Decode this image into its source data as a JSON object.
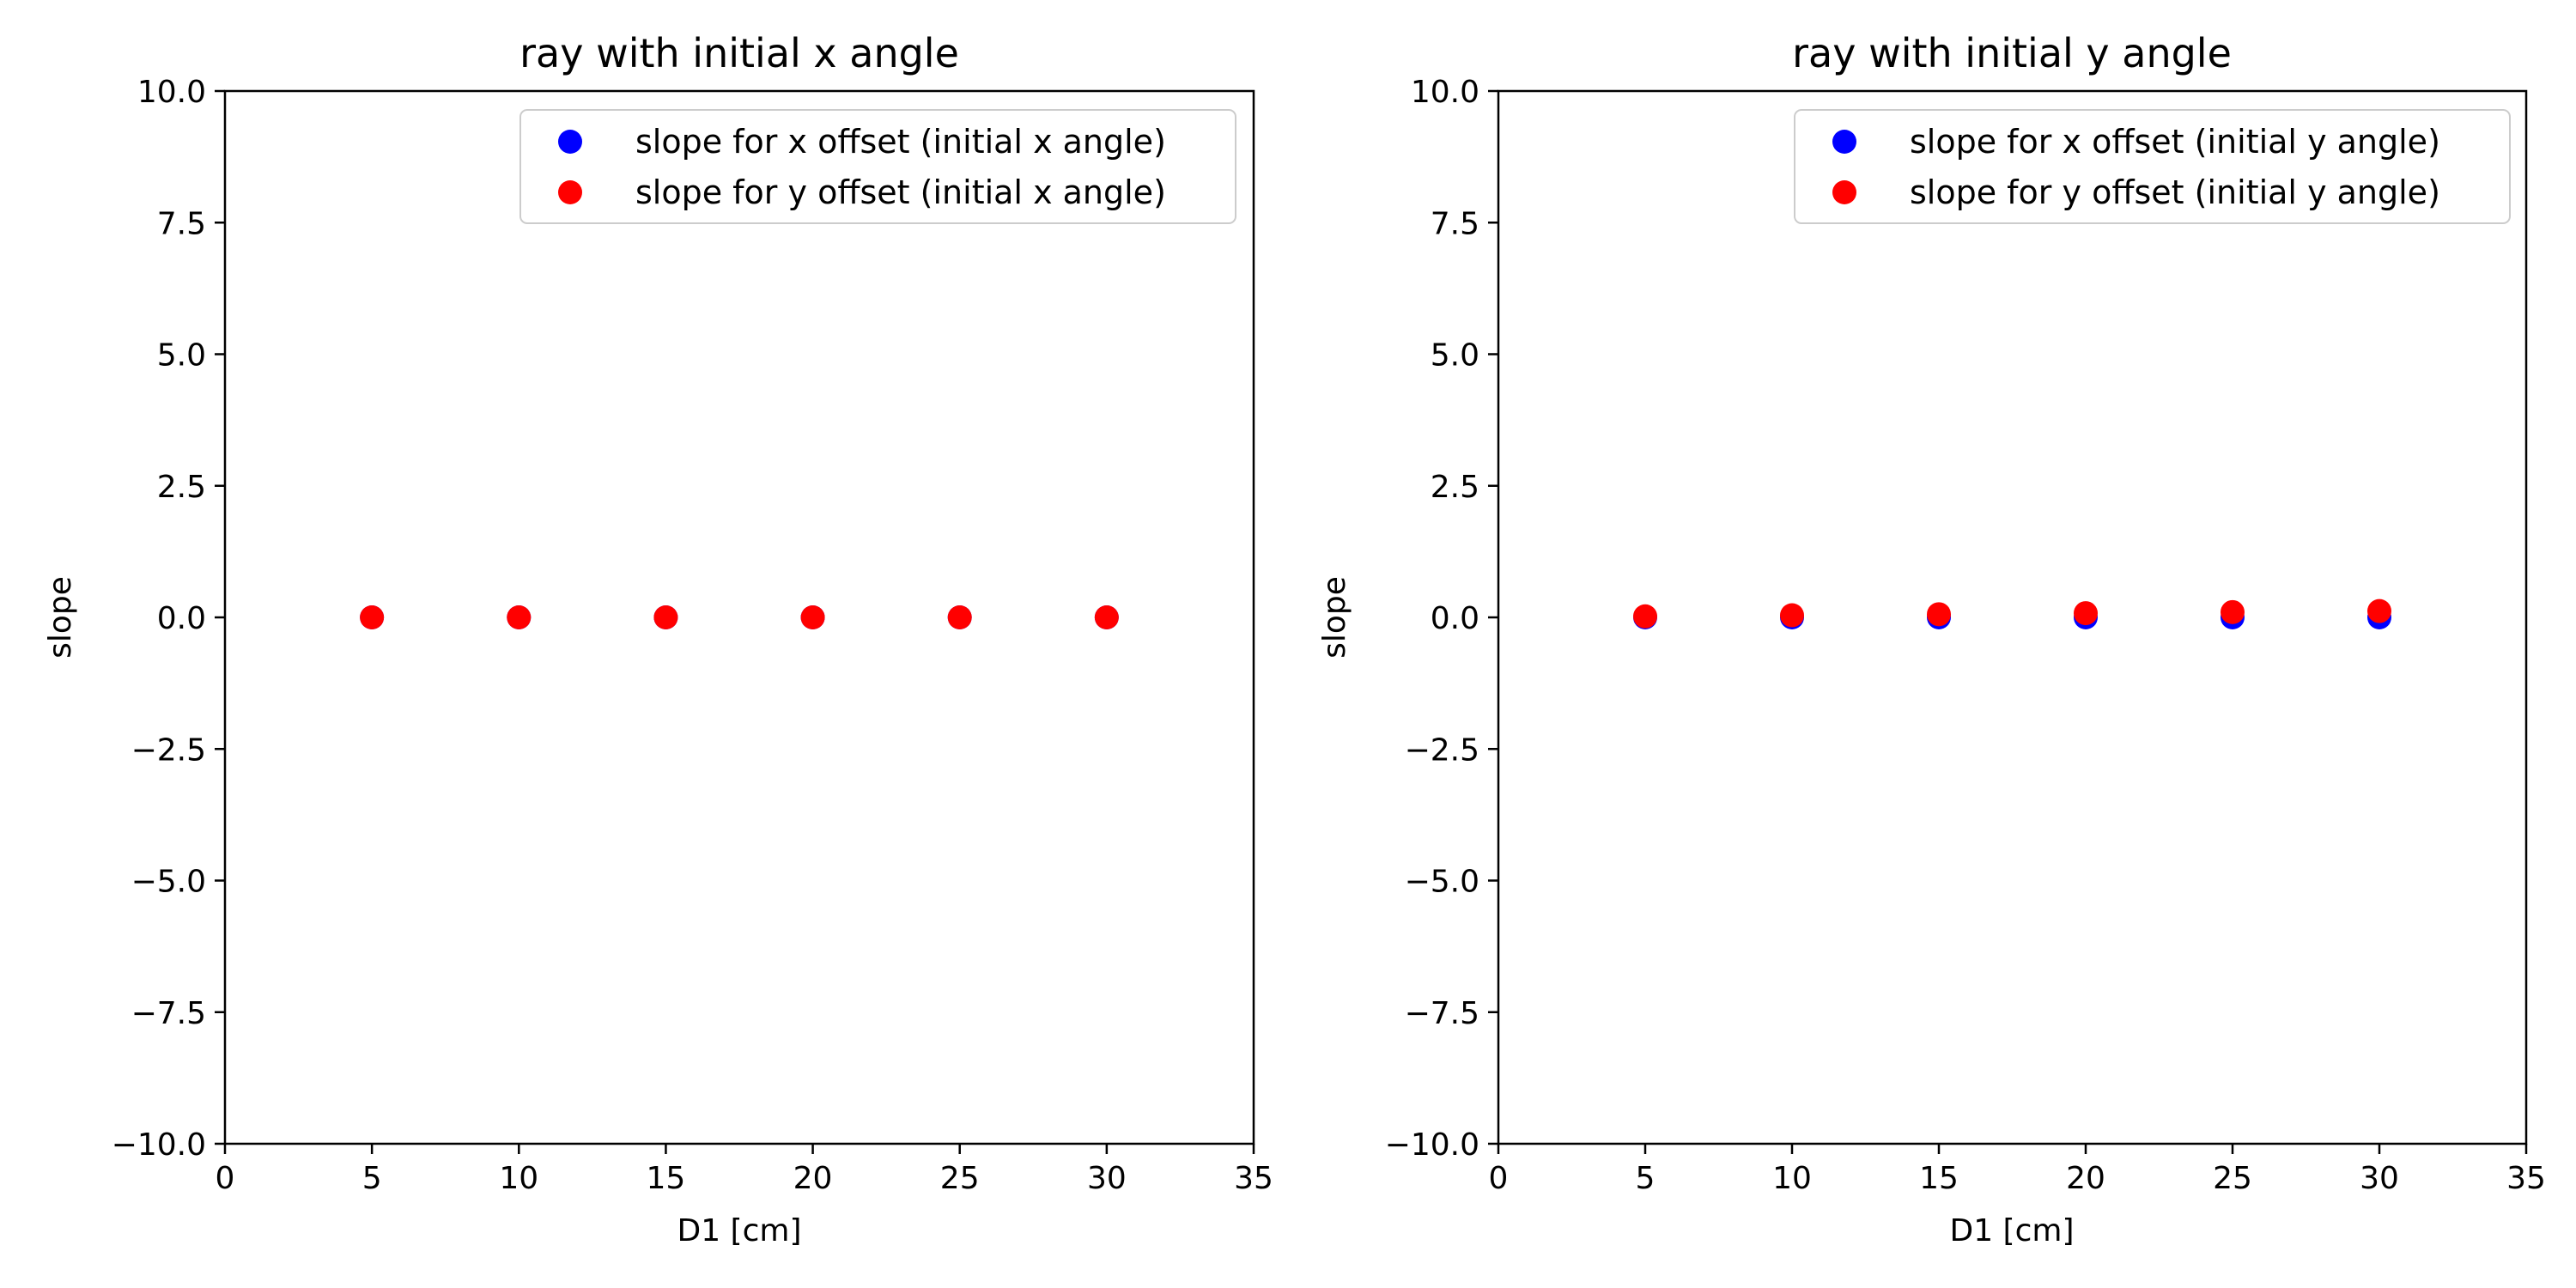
{
  "chart_data": [
    {
      "type": "scatter",
      "title": "ray with initial x angle",
      "xlabel": "D1 [cm]",
      "ylabel": "slope",
      "xlim": [
        0,
        35
      ],
      "ylim": [
        -10,
        10
      ],
      "x_ticks": [
        "0",
        "5",
        "10",
        "15",
        "20",
        "25",
        "30",
        "35"
      ],
      "y_ticks": [
        "10.0",
        "7.5",
        "5.0",
        "2.5",
        "0.0",
        "−2.5",
        "−5.0",
        "−7.5",
        "−10.0"
      ],
      "legend_position": "top-right",
      "series": [
        {
          "name": "slope for x offset (initial x angle)",
          "color": "#0000ff",
          "x": [
            5,
            10,
            15,
            20,
            25,
            30
          ],
          "y": [
            0.0,
            0.0,
            0.0,
            0.0,
            0.0,
            0.0
          ]
        },
        {
          "name": "slope for y offset (initial x angle)",
          "color": "#ff0000",
          "x": [
            5,
            10,
            15,
            20,
            25,
            30
          ],
          "y": [
            0.0,
            0.0,
            0.0,
            0.0,
            0.0,
            0.0
          ]
        }
      ]
    },
    {
      "type": "scatter",
      "title": "ray with initial y angle",
      "xlabel": "D1 [cm]",
      "ylabel": "slope",
      "xlim": [
        0,
        35
      ],
      "ylim": [
        -10,
        10
      ],
      "x_ticks": [
        "0",
        "5",
        "10",
        "15",
        "20",
        "25",
        "30",
        "35"
      ],
      "y_ticks": [
        "10.0",
        "7.5",
        "5.0",
        "2.5",
        "0.0",
        "−2.5",
        "−5.0",
        "−7.5",
        "−10.0"
      ],
      "legend_position": "top-right",
      "series": [
        {
          "name": "slope for x offset (initial y angle)",
          "color": "#0000ff",
          "x": [
            5,
            10,
            15,
            20,
            25,
            30
          ],
          "y": [
            0.0,
            0.0,
            0.0,
            0.0,
            0.0,
            0.0
          ]
        },
        {
          "name": "slope for y offset (initial y angle)",
          "color": "#ff0000",
          "x": [
            5,
            10,
            15,
            20,
            25,
            30
          ],
          "y": [
            0.02,
            0.04,
            0.06,
            0.08,
            0.1,
            0.12
          ]
        }
      ]
    }
  ]
}
